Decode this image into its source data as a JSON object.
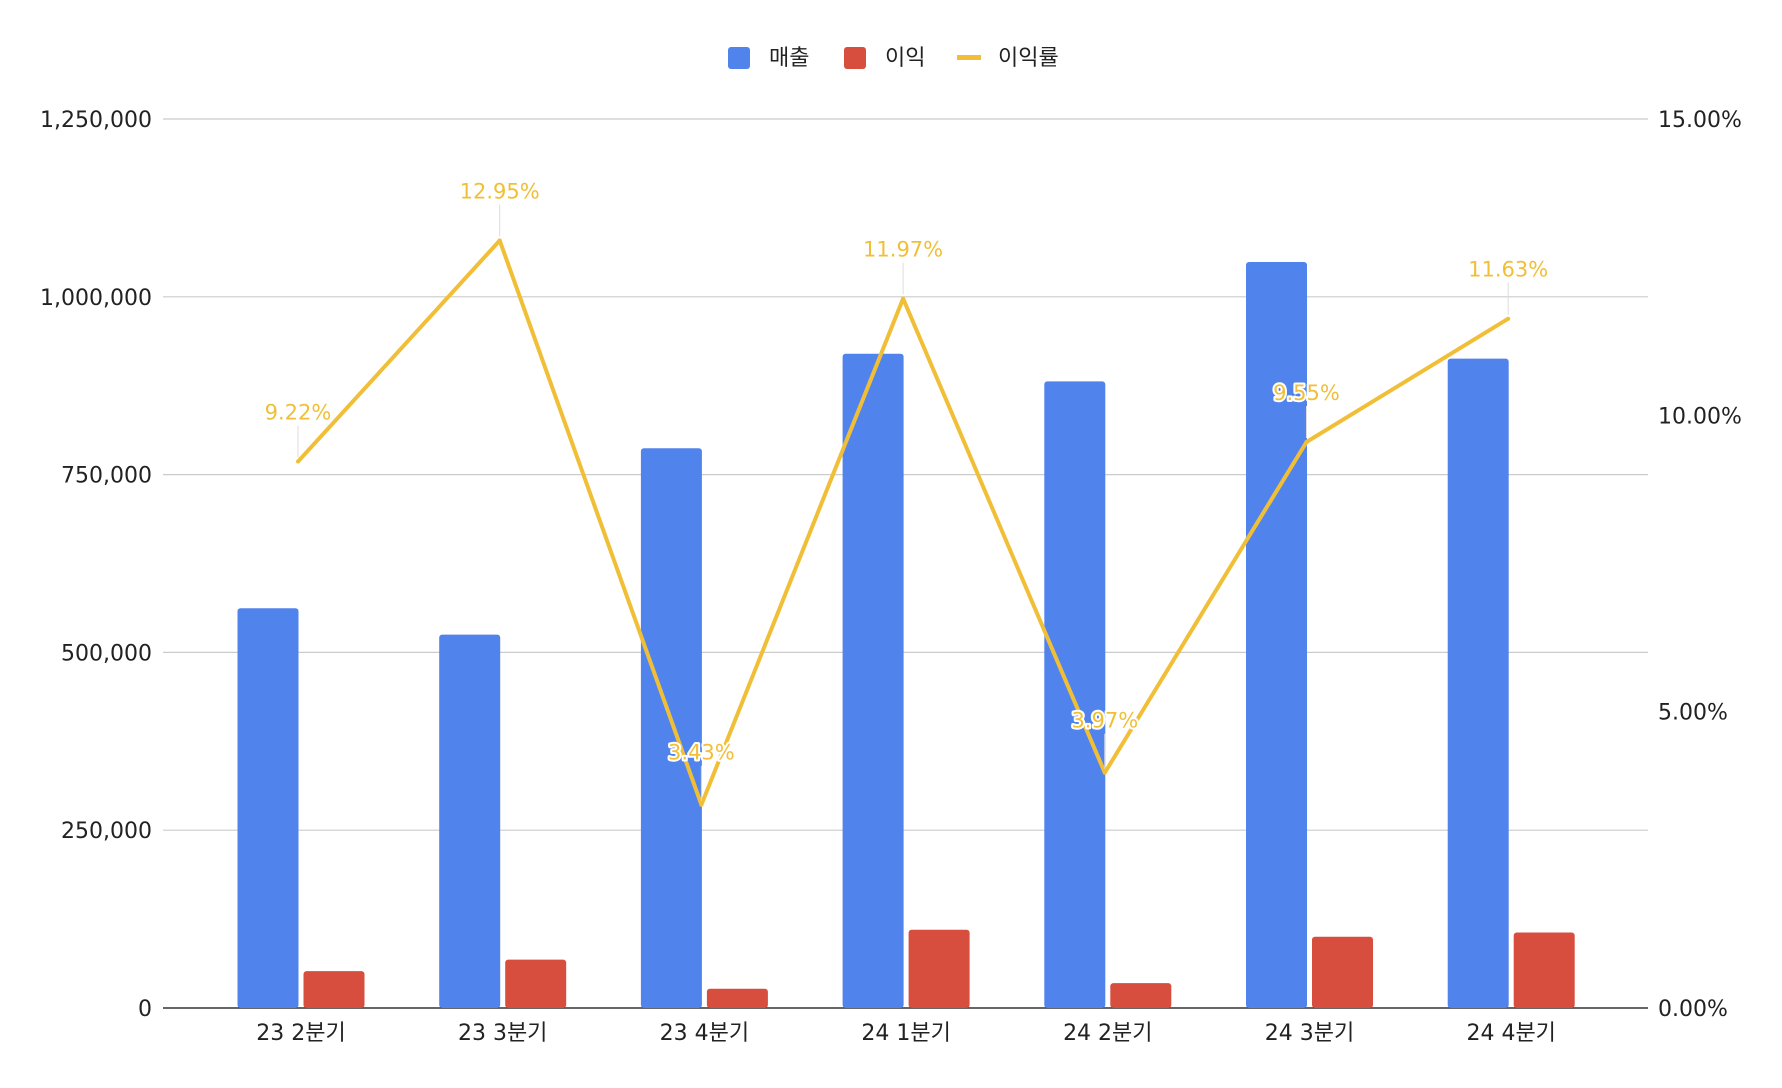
{
  "chart_data": {
    "type": "bar",
    "categories": [
      "23 2분기",
      "23 3분기",
      "23 4분기",
      "24 1분기",
      "24 2분기",
      "24 3분기",
      "24 4분기"
    ],
    "series": [
      {
        "name": "매출",
        "kind": "bar",
        "axis": "left",
        "color": "#5083ec",
        "values": [
          562000,
          525000,
          787000,
          920000,
          881000,
          1049000,
          913000
        ]
      },
      {
        "name": "이익",
        "kind": "bar",
        "axis": "left",
        "color": "#d74e3f",
        "values": [
          51800,
          68000,
          27000,
          110100,
          35000,
          100200,
          106200
        ]
      },
      {
        "name": "이익률",
        "kind": "line",
        "axis": "right",
        "color": "#f1bf37",
        "values": [
          9.22,
          12.95,
          3.43,
          11.97,
          3.97,
          9.55,
          11.63
        ],
        "labels": [
          "9.22%",
          "12.95%",
          "3.43%",
          "11.97%",
          "3.97%",
          "9.55%",
          "11.63%"
        ]
      }
    ],
    "y_left": {
      "ylim": [
        0,
        1250000
      ],
      "ticks": [
        0,
        250000,
        500000,
        750000,
        1000000,
        1250000
      ],
      "tick_labels": [
        "0",
        "250,000",
        "500,000",
        "750,000",
        "1,000,000",
        "1,250,000"
      ]
    },
    "y_right": {
      "ylim": [
        0,
        15
      ],
      "ticks": [
        0,
        5,
        10,
        15
      ],
      "tick_labels": [
        "0.00%",
        "5.00%",
        "10.00%",
        "15.00%"
      ]
    },
    "grid": true,
    "legend": "top-center",
    "title": "",
    "xlabel": "",
    "ylabel": ""
  }
}
